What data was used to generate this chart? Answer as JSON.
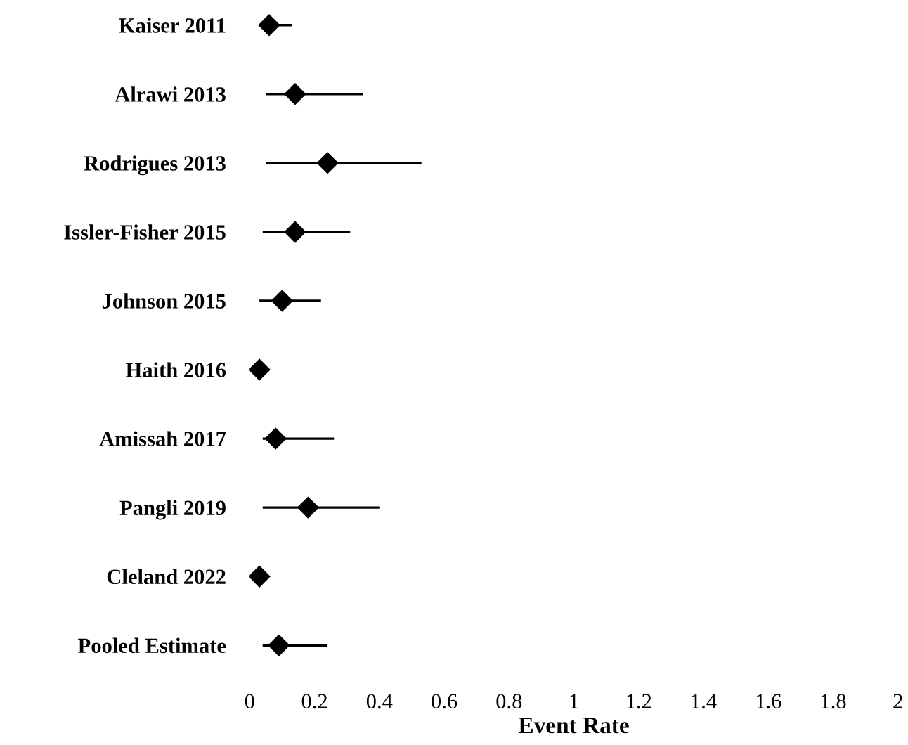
{
  "chart_data": {
    "type": "scatter",
    "orientation": "horizontal",
    "xlabel": "Event Rate",
    "categories": [
      "Kaiser 2011",
      "Alrawi 2013",
      "Rodrigues 2013",
      "Issler-Fisher 2015",
      "Johnson 2015",
      "Haith 2016",
      "Amissah 2017",
      "Pangli 2019",
      "Cleland 2022",
      "Pooled Estimate"
    ],
    "color": "#000000",
    "values": [
      0.06,
      0.14,
      0.24,
      0.14,
      0.1,
      0.03,
      0.08,
      0.18,
      0.03,
      0.09
    ],
    "errors": [
      [
        0.03,
        0.13
      ],
      [
        0.05,
        0.35
      ],
      [
        0.05,
        0.53
      ],
      [
        0.04,
        0.31
      ],
      [
        0.03,
        0.22
      ],
      null,
      [
        0.04,
        0.26
      ],
      [
        0.04,
        0.4
      ],
      null,
      [
        0.04,
        0.24
      ]
    ],
    "xlim": [
      0,
      2
    ],
    "xticks": [
      0,
      0.2,
      0.4,
      0.6,
      0.8,
      1,
      1.2,
      1.4,
      1.6,
      1.8,
      2
    ],
    "marker": "diamond",
    "grid": false,
    "legend": false
  }
}
